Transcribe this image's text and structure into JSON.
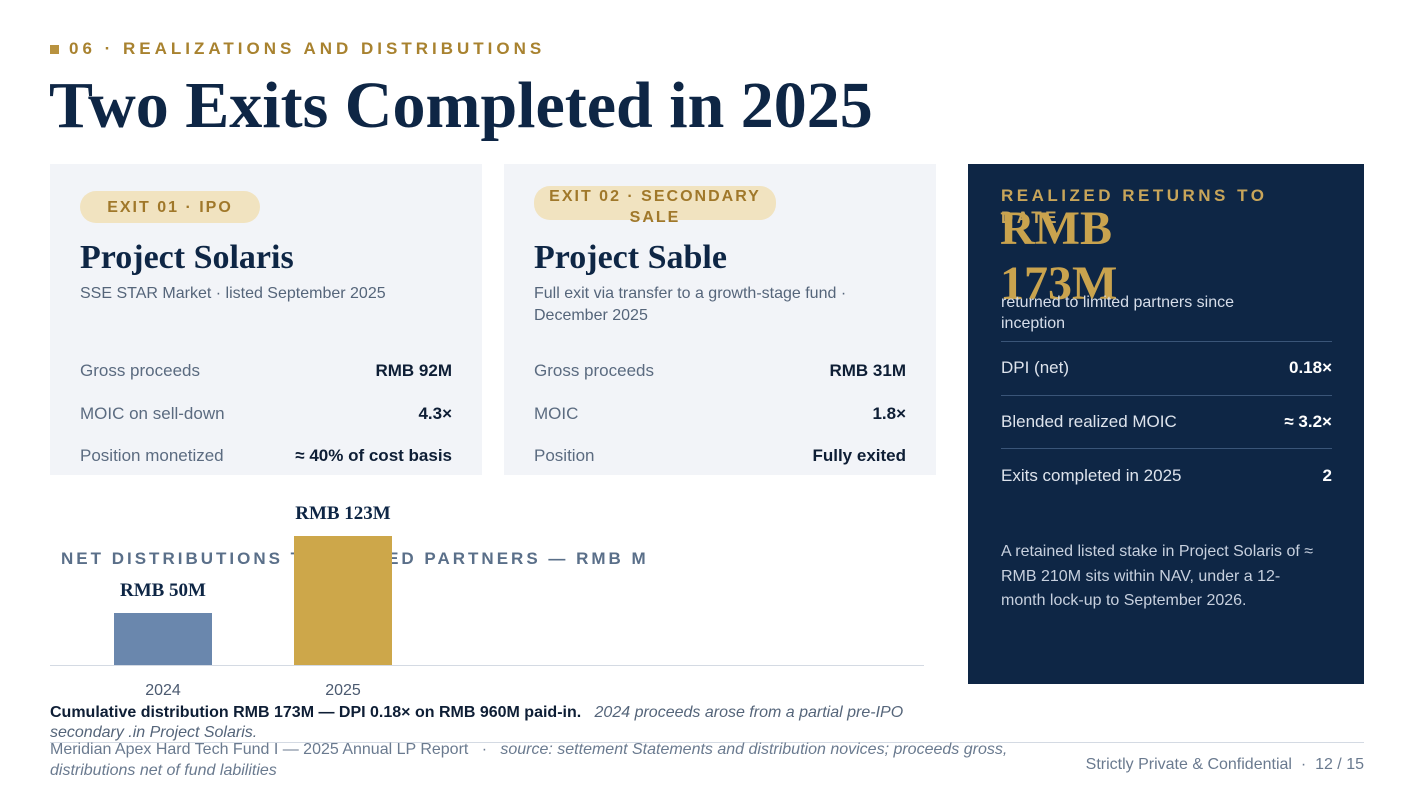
{
  "header": {
    "eyebrow": "06 · REALIZATIONS AND DISTRIBUTIONS",
    "title": "Two Exits Completed in 2025"
  },
  "exits": [
    {
      "tag": "EXIT 01 · IPO",
      "name": "Project Solaris",
      "subtitle": "SSE STAR Market · listed September 2025",
      "rows": [
        {
          "label": "Gross proceeds",
          "value": "RMB 92M"
        },
        {
          "label": "MOIC on sell-down",
          "value": "4.3×"
        },
        {
          "label": "Position monetized",
          "value": "≈ 40% of cost basis"
        }
      ]
    },
    {
      "tag": "EXIT 02 · SECONDARY SALE",
      "name": "Project Sable",
      "subtitle": "Full exit via transfer to a growth-stage fund · December 2025",
      "rows": [
        {
          "label": "Gross proceeds",
          "value": "RMB 31M"
        },
        {
          "label": "MOIC",
          "value": "1.8×"
        },
        {
          "label": "Position",
          "value": "Fully exited"
        }
      ]
    }
  ],
  "summary": {
    "label": "REALIZED RETURNS TO DATE",
    "amount": "RMB 173M",
    "caption": "returned to limited partners since inception",
    "rows": [
      {
        "label": "DPI (net)",
        "value": "0.18×"
      },
      {
        "label": "Blended realized MOIC",
        "value": "≈ 3.2×"
      },
      {
        "label": "Exits completed in 2025",
        "value": "2"
      }
    ],
    "note": "A retained listed stake in Project Solaris of ≈ RMB 210M sits within NAV, under a 12-month lock-up to September 2026."
  },
  "chart_data": {
    "type": "bar",
    "title": "NET DISTRIBUTIONS TO LIMITED PARTNERS — RMB M",
    "categories": [
      "2024",
      "2025"
    ],
    "values": [
      50,
      123
    ],
    "data_labels": [
      "RMB 50M",
      "RMB 123M"
    ],
    "colors": [
      "#6a87ad",
      "#cda74a"
    ],
    "ylim": [
      0,
      123
    ],
    "grid": false
  },
  "caption": {
    "bold": "Cumulative  distribution RMB 173M — DPI 0.18× on RMB 960M paid-in.",
    "italic": "2024 proceeds arose from a partial pre-IPO secondary .in Project Solaris."
  },
  "footer": {
    "left": "Meridian Apex Hard Tech Fund I — 2025 Annual LP Report",
    "sep": "·",
    "source": "source: settement Statements and distribution novices; proceeds gross, distributions net of fund labilities",
    "right": "Strictly Private & Confidential",
    "page": "12 / 15"
  },
  "colors": {
    "navy": "#0e2645",
    "gold": "#c9a34e",
    "card": "#f2f4f8"
  }
}
